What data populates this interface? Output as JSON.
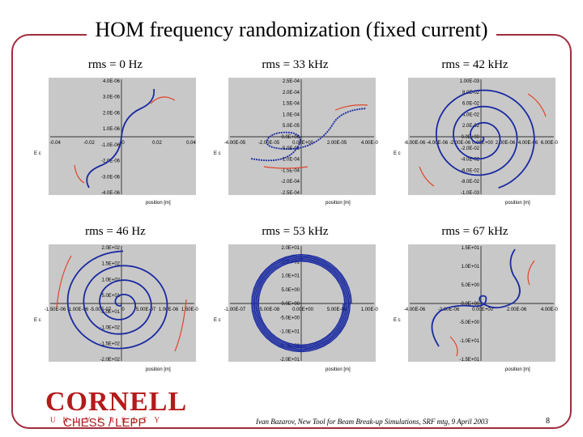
{
  "slide": {
    "title": "HOM frequency randomization (fixed current)",
    "logo_main": "CORNELL",
    "logo_sub": "UNIVERSITY",
    "group": "CHESS / LEPP",
    "citation": "Ivan Bazarov, New Tool for Beam Break-up Simulations, SRF mtg, 9 April 2003",
    "page": "8"
  },
  "colors": {
    "frame": "#a02c3c",
    "curve": "#1a2aa0",
    "arrow": "#e0452a",
    "plotbg": "#c8c8c8"
  },
  "chart_data": [
    {
      "type": "scatter",
      "title": "rms = 0 Hz",
      "xlabel": "position [m]",
      "ylabel": "E c",
      "xticks": [
        "-0.04",
        "-0.02",
        "0",
        "0.02",
        "0.04"
      ],
      "yticks": [
        "4.0E-06",
        "3.0E-06",
        "2.0E-06",
        "1.0E-06",
        "-1.0E-06",
        "-2.0E-06",
        "-3.0E-06",
        "-4.0E-06"
      ]
    },
    {
      "type": "scatter",
      "title": "rms = 33 kHz",
      "xlabel": "position [m]",
      "ylabel": "E c",
      "xticks": [
        "-4.00E-05",
        "-2.00E-05",
        "0.00E+00",
        "2.00E-05",
        "4.00E-05"
      ],
      "yticks": [
        "2.5E-04",
        "2.0E-04",
        "1.5E-04",
        "1.0E-04",
        "5.0E-05",
        "0.0E+00",
        "-5.0E-05",
        "-1.0E-04",
        "-1.5E-04",
        "-2.0E-04",
        "-2.5E-04"
      ]
    },
    {
      "type": "scatter",
      "title": "rms = 42 kHz",
      "xlabel": "position [m]",
      "ylabel": "E c",
      "xticks": [
        "-6.00E-06",
        "-4.00E-06",
        "-2.00E-06",
        "0.00E+00",
        "2.00E-06",
        "4.00E-06",
        "6.00E-06"
      ],
      "yticks": [
        "1.00E-03",
        "8.0E-02",
        "6.0E-02",
        "4.0E-02",
        "2.0E-02",
        "0.0E+00",
        "-2.0E-02",
        "-4.0E-02",
        "-6.0E-02",
        "-8.0E-02",
        "-1.0E-03"
      ]
    },
    {
      "type": "scatter",
      "title": "rms = 46 Hz",
      "xlabel": "position [m]",
      "ylabel": "E c",
      "xticks": [
        "-1.50E-06",
        "-1.00E-06",
        "-5.00E-07",
        "0",
        "5.00E-07",
        "1.00E-06",
        "1.50E-06"
      ],
      "yticks": [
        "2.0E+02",
        "1.5E+02",
        "1.0E+02",
        "5.0E+01",
        "-5.0E+01",
        "-1.0E+02",
        "-1.5E+02",
        "-2.0E+02"
      ]
    },
    {
      "type": "scatter",
      "title": "rms = 53 kHz",
      "xlabel": "position [m]",
      "ylabel": "E c",
      "xticks": [
        "-1.00E-07",
        "-5.00E-08",
        "0.00E+00",
        "5.00E-08",
        "1.00E-07"
      ],
      "yticks": [
        "2.0E+01",
        "1.5E+01",
        "1.0E+01",
        "5.0E+00",
        "0.0E+00",
        "-5.0E+00",
        "-1.0E+01",
        "-1.5E+01",
        "-2.0E+01"
      ]
    },
    {
      "type": "scatter",
      "title": "rms = 67 kHz",
      "xlabel": "position [m]",
      "ylabel": "E c",
      "xticks": [
        "-4.00E-06",
        "-2.00E-06",
        "0.00E+00",
        "2.00E-06",
        "4.00E-06"
      ],
      "yticks": [
        "1.5E+01",
        "1.0E+01",
        "5.0E+00",
        "0.0E+00",
        "-5.0E+00",
        "-1.0E+01",
        "-1.5E+01"
      ]
    }
  ]
}
